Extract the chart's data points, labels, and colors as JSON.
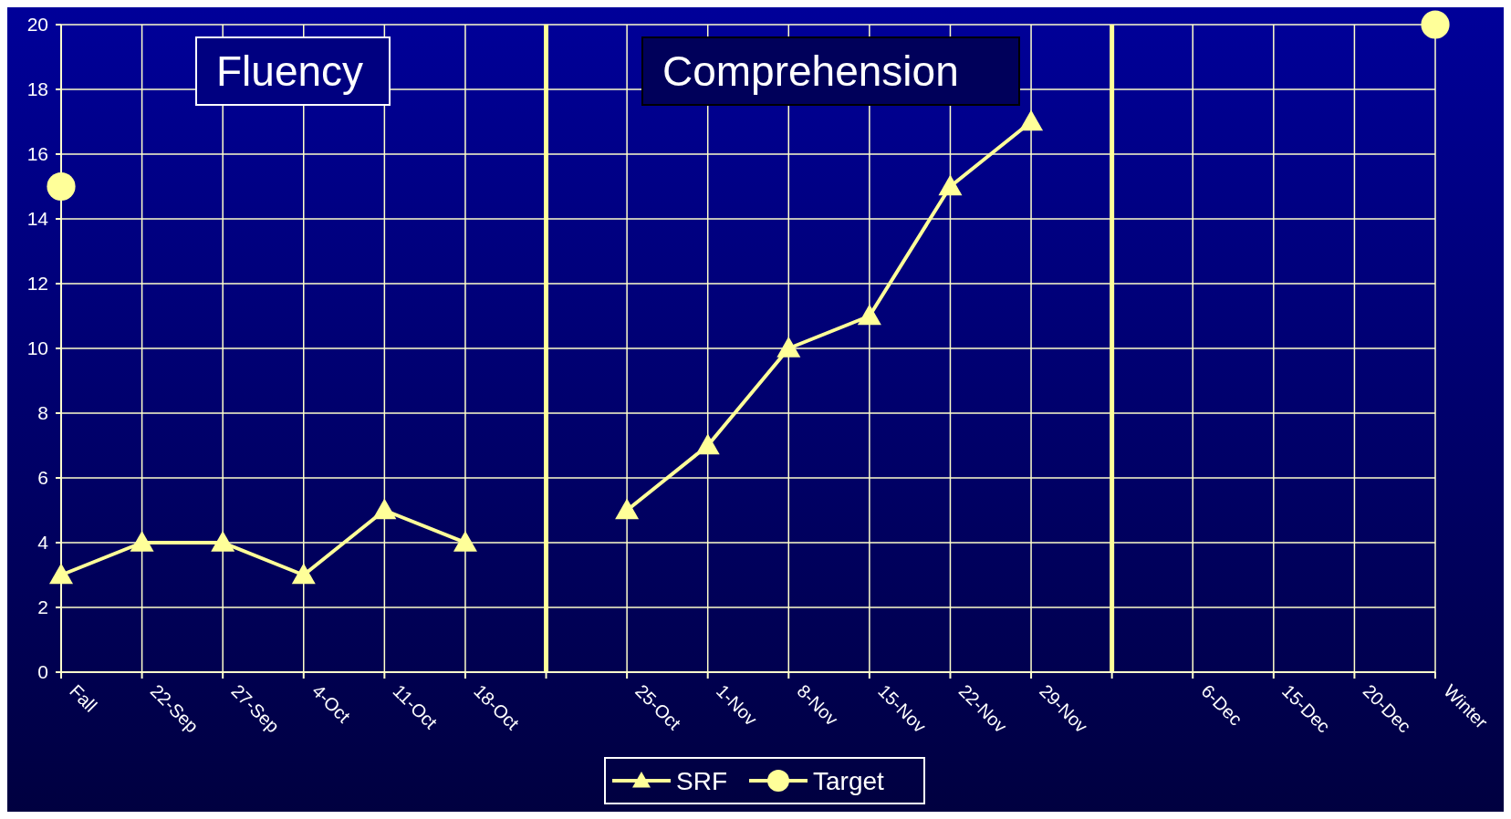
{
  "chart_data": {
    "type": "line",
    "categories": [
      "Fall",
      "22-Sep",
      "27-Sep",
      "4-Oct",
      "11-Oct",
      "18-Oct",
      null,
      "25-Oct",
      "1-Nov",
      "8-Nov",
      "15-Nov",
      "22-Nov",
      "29-Nov",
      null,
      "6-Dec",
      "15-Dec",
      "20-Dec",
      "Winter"
    ],
    "series": [
      {
        "name": "SRF",
        "color": "#ffff99",
        "marker": "triangle",
        "values": [
          3,
          4,
          4,
          3,
          5,
          4,
          null,
          5,
          7,
          10,
          11,
          15,
          17,
          null,
          null,
          null,
          null,
          null
        ]
      },
      {
        "name": "Target",
        "type": "scatter",
        "color": "#ffff99",
        "marker": "circle",
        "values": [
          15,
          null,
          null,
          null,
          null,
          null,
          null,
          null,
          null,
          null,
          null,
          null,
          null,
          null,
          null,
          null,
          null,
          20
        ]
      }
    ],
    "ylim": [
      0,
      20
    ],
    "yticks": [
      0,
      2,
      4,
      6,
      8,
      10,
      12,
      14,
      16,
      18,
      20
    ],
    "grid": true,
    "legend": "bottom",
    "annotations": [
      "Fluency",
      "Comprehension"
    ]
  }
}
